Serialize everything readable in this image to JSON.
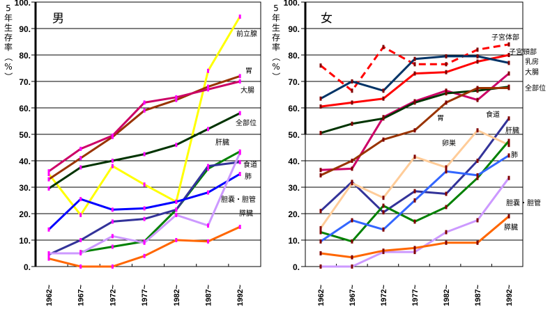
{
  "chart_data": [
    {
      "type": "line",
      "title": "男",
      "ylabel": "5年生存率（%）",
      "xlabel": "",
      "ylim": [
        0,
        100
      ],
      "yticks": [
        "0.",
        "10.",
        "20.",
        "30.",
        "40.",
        "50.",
        "60.",
        "70.",
        "80.",
        "90.",
        "100."
      ],
      "categories": [
        "1962~",
        "1967~",
        "1972~",
        "1977~",
        "1982~",
        "1987~",
        "1992~"
      ],
      "grid": true,
      "marker_color": "#ff00ff",
      "series": [
        {
          "name": "前立腺",
          "color": "#ffff00",
          "values": [
            35,
            19.5,
            38,
            31,
            24.5,
            74,
            94.5
          ]
        },
        {
          "name": "胃",
          "color": "#993300",
          "values": [
            33,
            41,
            49,
            59,
            63,
            68,
            72
          ]
        },
        {
          "name": "大腸",
          "color": "#cc0066",
          "values": [
            36,
            44.5,
            49.5,
            62,
            64,
            67,
            70
          ]
        },
        {
          "name": "全部位",
          "color": "#003300",
          "values": [
            29.5,
            37.5,
            40,
            42.5,
            46,
            52,
            58
          ]
        },
        {
          "name": "肝臓",
          "color": "#008000",
          "values": [
            null,
            5.5,
            7.5,
            9.5,
            21.5,
            37,
            43.5
          ]
        },
        {
          "name": "食道",
          "color": "#333399",
          "values": [
            4.5,
            10,
            17,
            18,
            21.5,
            38,
            39.5
          ]
        },
        {
          "name": "肺",
          "color": "#0000ff",
          "values": [
            14,
            25.5,
            21.5,
            22,
            24.5,
            28,
            35
          ]
        },
        {
          "name": "胆嚢・胆管",
          "color": "#cc99ff",
          "values": [
            5,
            5,
            11.5,
            9,
            19.5,
            15.5,
            43
          ]
        },
        {
          "name": "膵臓",
          "color": "#ff6600",
          "values": [
            3,
            0,
            0,
            4,
            10,
            9.5,
            15
          ]
        }
      ],
      "annotations": [
        "前立腺",
        "胃",
        "大腸",
        "全部位",
        "肝臓",
        "食道",
        "肺",
        "胆嚢・胆管",
        "膵臓"
      ]
    },
    {
      "type": "line",
      "title": "女",
      "ylabel": "5年生存率（%）",
      "xlabel": "",
      "ylim": [
        0,
        100
      ],
      "yticks": [
        "0.",
        "10.",
        "20.",
        "30.",
        "40.",
        "50.",
        "60.",
        "70.",
        "80.",
        "90.",
        "100."
      ],
      "categories": [
        "1962~",
        "1967~",
        "1972~",
        "1977~",
        "1982~",
        "1987~",
        "1992~"
      ],
      "grid": true,
      "marker_color": "#800000",
      "series": [
        {
          "name": "子宮体部",
          "color": "#ff0000",
          "dashed": true,
          "values": [
            76,
            66.5,
            83,
            76.5,
            76.5,
            82,
            84
          ]
        },
        {
          "name": "子宮頸部",
          "color": "#ff0000",
          "values": [
            60.5,
            62,
            63.5,
            73,
            73.5,
            77.5,
            80
          ]
        },
        {
          "name": "乳房",
          "color": "#003366",
          "values": [
            63.5,
            70,
            66.5,
            78.5,
            79.5,
            79.5,
            77
          ]
        },
        {
          "name": "大腸",
          "color": "#cc0066",
          "values": [
            36.5,
            37,
            56.5,
            62.5,
            66.5,
            63,
            73
          ]
        },
        {
          "name": "全部位",
          "color": "#003300",
          "values": [
            50.5,
            54,
            56,
            62,
            65.5,
            66.5,
            68
          ]
        },
        {
          "name": "胃",
          "color": "#993300",
          "values": [
            34.5,
            40,
            48,
            51.5,
            62,
            67.5,
            67.5
          ]
        },
        {
          "name": "食道",
          "color": "#333399",
          "values": [
            21,
            32,
            20.5,
            28.5,
            27.5,
            40,
            56
          ]
        },
        {
          "name": "卵巣",
          "color": "#ffcc99",
          "values": [
            14.5,
            31.5,
            26,
            41.5,
            37.5,
            51.5,
            46
          ]
        },
        {
          "name": "肝臓",
          "color": "#008000",
          "values": [
            13,
            9.5,
            23,
            17,
            22.5,
            33.5,
            47.5
          ]
        },
        {
          "name": "肺",
          "color": "#3366ff",
          "values": [
            9.5,
            17.5,
            14,
            25,
            36,
            34.5,
            42
          ]
        },
        {
          "name": "胆嚢・胆管",
          "color": "#cc99ff",
          "values": [
            0,
            0,
            5.5,
            5.5,
            13,
            17.5,
            33.5
          ]
        },
        {
          "name": "膵臓",
          "color": "#ff6600",
          "values": [
            5,
            3.5,
            6,
            7,
            9,
            9,
            19
          ]
        }
      ],
      "annotations": [
        "子宮体部",
        "子宮頸部",
        "乳房",
        "大腸",
        "全部位",
        "胃",
        "食道",
        "卵巣",
        "肝臓",
        "肺",
        "胆嚢・胆管",
        "膵臓"
      ]
    }
  ]
}
